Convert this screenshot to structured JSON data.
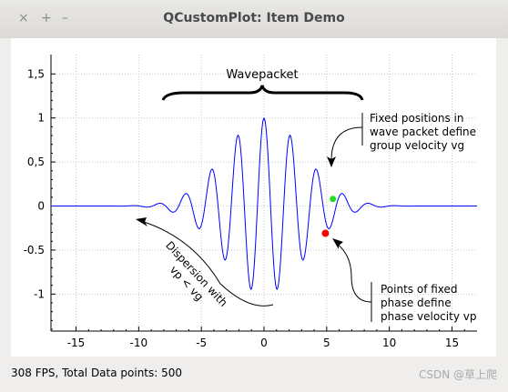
{
  "window": {
    "title": "QCustomPlot: Item Demo",
    "buttons": {
      "close": "×",
      "maximize": "+",
      "minimize": "–"
    }
  },
  "status_text": "308 FPS, Total Data points: 500",
  "watermark": "CSDN @草上爬",
  "colors": {
    "curve": "#0000ff",
    "group_point": "#22dd22",
    "phase_point": "#ff0000"
  },
  "chart_data": {
    "type": "line",
    "xlim": [
      -17,
      17
    ],
    "ylim": [
      -1.42,
      1.72
    ],
    "x_ticks": [
      -15,
      -10,
      -5,
      0,
      5,
      10,
      15
    ],
    "x_tick_labels": [
      "-15",
      "-10",
      "-5",
      "0",
      "5",
      "10",
      "15"
    ],
    "y_ticks": [
      1.5,
      1,
      0.5,
      0,
      -0.5,
      -1
    ],
    "y_tick_labels": [
      "1,5",
      "1",
      "0,5",
      "0",
      "-0.5",
      "-1"
    ],
    "grid": true,
    "series": [
      {
        "function": "exp(-x*x/20) * cos(3*x)",
        "x_range": [
          -17,
          17
        ],
        "points": 500
      }
    ],
    "markers": [
      {
        "x": 5.5,
        "y": 0.08,
        "color": "#22dd22"
      },
      {
        "x": 4.9,
        "y": -0.31,
        "color": "#ff0000"
      }
    ],
    "annotations": {
      "wavepacket": "Wavepacket",
      "group": [
        "Fixed positions in",
        "wave packet define",
        "group velocity vg"
      ],
      "phase": [
        "Points of fixed",
        "phase define",
        "phase velocity vp"
      ],
      "dispersion": [
        "Dispersion with",
        "vp < vg"
      ]
    }
  }
}
